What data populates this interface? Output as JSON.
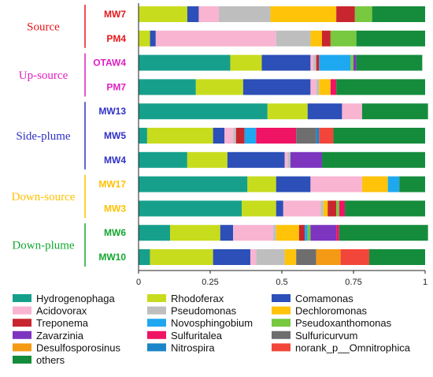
{
  "chart_data": {
    "type": "bar",
    "orientation": "horizontal",
    "stacked": true,
    "title": "",
    "xlabel": "",
    "ylabel": "",
    "xlim": [
      0,
      1
    ],
    "xticks": [
      0,
      0.25,
      0.5,
      0.75,
      1
    ],
    "xtick_labels": [
      "0",
      "0.25",
      "0.5",
      "0.75",
      "1"
    ],
    "grid": false,
    "legend_position": "bottom",
    "groups": [
      {
        "name": "Source",
        "color": "#e8161b",
        "samples": [
          "MW7",
          "PM4"
        ]
      },
      {
        "name": "Up-source",
        "color": "#e11fc2",
        "samples": [
          "OTAW4",
          "PM7"
        ]
      },
      {
        "name": "Side-plume",
        "color": "#3030c8",
        "samples": [
          "MW13",
          "MW5",
          "MW4"
        ]
      },
      {
        "name": "Down-source",
        "color": "#ffc000",
        "samples": [
          "MW17",
          "MW3"
        ]
      },
      {
        "name": "Down-plume",
        "color": "#12a82e",
        "samples": [
          "MW6",
          "MW10"
        ]
      }
    ],
    "categories": [
      "MW7",
      "PM4",
      "OTAW4",
      "PM7",
      "MW13",
      "MW5",
      "MW4",
      "MW17",
      "MW3",
      "MW6",
      "MW10"
    ],
    "series": [
      {
        "name": "Hydrogenophaga",
        "color": "#16a08c",
        "values": [
          0,
          0,
          0.32,
          0.2,
          0.45,
          0.03,
          0.17,
          0.38,
          0.36,
          0.11,
          0.04
        ]
      },
      {
        "name": "Rhodoferax",
        "color": "#c8dc1e",
        "values": [
          0.17,
          0.04,
          0.11,
          0.165,
          0.14,
          0.23,
          0.14,
          0.1,
          0.12,
          0.175,
          0.22
        ]
      },
      {
        "name": "Comamonas",
        "color": "#2c4fb8",
        "values": [
          0.04,
          0.02,
          0.17,
          0.235,
          0.12,
          0.04,
          0.2,
          0.12,
          0.025,
          0.045,
          0.13
        ]
      },
      {
        "name": "Acidovorax",
        "color": "#f9b4d2",
        "values": [
          0.07,
          0.42,
          0.01,
          0.02,
          0.07,
          0.03,
          0.01,
          0.18,
          0.13,
          0.14,
          0.02
        ]
      },
      {
        "name": "Pseudomonas",
        "color": "#bebebe",
        "values": [
          0.18,
          0.12,
          0.01,
          0.01,
          0.0,
          0.01,
          0.01,
          0.0,
          0.01,
          0.01,
          0.1
        ]
      },
      {
        "name": "Dechloromonas",
        "color": "#ffc30a",
        "values": [
          0.23,
          0.04,
          0.0,
          0.04,
          0.0,
          0.0,
          0.0,
          0.09,
          0.015,
          0.08,
          0.04
        ]
      },
      {
        "name": "Treponema",
        "color": "#c8262e",
        "values": [
          0.065,
          0.03,
          0.01,
          0.0,
          0.0,
          0.03,
          0.0,
          0.0,
          0.03,
          0.02,
          0.0
        ]
      },
      {
        "name": "Novosphingobium",
        "color": "#1ea8f0",
        "values": [
          0.0,
          0.0,
          0.11,
          0.0,
          0.0,
          0.04,
          0.0,
          0.04,
          0.0,
          0.01,
          0.0
        ]
      },
      {
        "name": "Pseudoxanthomonas",
        "color": "#78c840",
        "values": [
          0.06,
          0.09,
          0.01,
          0.0,
          0.0,
          0.0,
          0.0,
          0.0,
          0.01,
          0.01,
          0.0
        ]
      },
      {
        "name": "Zavarzinia",
        "color": "#7d35c0",
        "values": [
          0.0,
          0.0,
          0.01,
          0.0,
          0.0,
          0.0,
          0.11,
          0.0,
          0.0,
          0.09,
          0.0
        ]
      },
      {
        "name": "Sulfuritalea",
        "color": "#ef1464",
        "values": [
          0.0,
          0.0,
          0.0,
          0.02,
          0.0,
          0.14,
          0.0,
          0.0,
          0.02,
          0.01,
          0.0
        ]
      },
      {
        "name": "Sulfuricurvum",
        "color": "#6e6e6e",
        "values": [
          0.0,
          0.0,
          0.0,
          0.0,
          0.0,
          0.07,
          0.0,
          0.0,
          0.0,
          0.0,
          0.07
        ]
      },
      {
        "name": "Desulfosporosinus",
        "color": "#f59a14",
        "values": [
          0.0,
          0.0,
          0.0,
          0.0,
          0.0,
          0.0,
          0.0,
          0.0,
          0.0,
          0.0,
          0.085
        ]
      },
      {
        "name": "Nitrospira",
        "color": "#1b85c9",
        "values": [
          0.0,
          0.0,
          0.0,
          0.0,
          0.0,
          0.01,
          0.0,
          0.0,
          0.0,
          0.0,
          0.0
        ]
      },
      {
        "name": "norank_p__Omnitrophica",
        "color": "#f2463a",
        "values": [
          0.0,
          0.0,
          0.0,
          0.0,
          0.0,
          0.05,
          0.0,
          0.0,
          0.0,
          0.0,
          0.1
        ]
      },
      {
        "name": "others",
        "color": "#148c3c",
        "values": [
          0.185,
          0.24,
          0.23,
          0.31,
          0.23,
          0.32,
          0.36,
          0.09,
          0.28,
          0.31,
          0.195
        ]
      }
    ]
  }
}
